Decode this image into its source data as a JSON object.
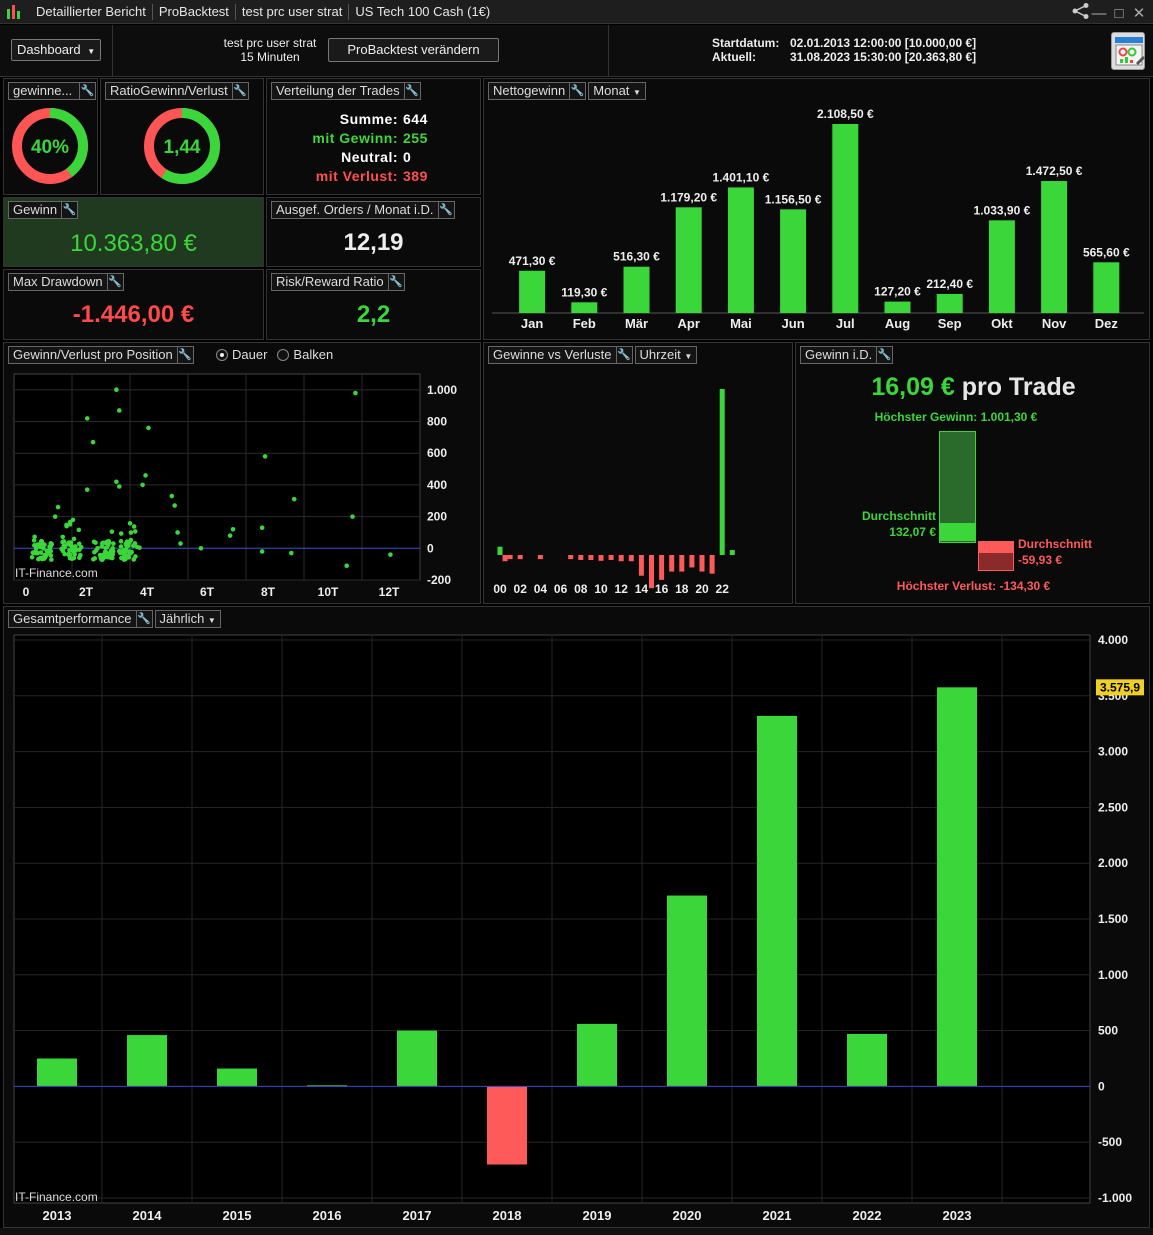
{
  "titlebar": {
    "segments": [
      "Detaillierter Bericht",
      "ProBacktest",
      "test prc user strat",
      "US Tech 100 Cash (1€)"
    ],
    "controls": [
      "share-icon",
      "minimize-icon",
      "maximize-icon",
      "close-icon"
    ]
  },
  "header": {
    "dashboard_label": "Dashboard",
    "strategy_name": "test prc user strat",
    "timeframe": "15 Minuten",
    "modify_button": "ProBacktest verändern",
    "start_label": "Startdatum:",
    "start_value": "02.01.2013 12:00:00 [10.000,00 €]",
    "current_label": "Aktuell:",
    "current_value": "31.08.2023 15:30:00 [20.363,80 €]"
  },
  "panels": {
    "winrate": {
      "title": "gewinne...",
      "value": "40%",
      "fraction": 0.4
    },
    "ratio": {
      "title": "RatioGewinn/Verlust",
      "value": "1,44",
      "fraction": 0.59
    },
    "distribution": {
      "title": "Verteilung der Trades",
      "rows": [
        {
          "label": "Summe:",
          "value": "644",
          "color": "#ffffff"
        },
        {
          "label": "mit Gewinn:",
          "value": "255",
          "color": "#3fd63f"
        },
        {
          "label": "Neutral:",
          "value": "0",
          "color": "#ffffff"
        },
        {
          "label": "mit Verlust:",
          "value": "389",
          "color": "#ff5050"
        }
      ]
    },
    "gain": {
      "title": "Gewinn",
      "value": "10.363,80 €"
    },
    "orders": {
      "title": "Ausgef. Orders / Monat i.D.",
      "value": "12,19"
    },
    "drawdown": {
      "title": "Max Drawdown",
      "value": "-1.446,00 €"
    },
    "riskreward": {
      "title": "Risk/Reward Ratio",
      "value": "2,2"
    },
    "monthly": {
      "title": "Nettogewinn",
      "dropdown": "Monat"
    },
    "scatter": {
      "title": "Gewinn/Verlust pro Position",
      "option1": "Dauer",
      "option2": "Balken",
      "watermark": "IT-Finance.com"
    },
    "hours": {
      "title": "Gewinne vs Verluste",
      "dropdown": "Uhrzeit"
    },
    "avg": {
      "title": "Gewinn i.D.",
      "per_trade_value": "16,09 €",
      "per_trade_text": "pro Trade",
      "max_gain_label": "Höchster Gewinn: 1.001,30 €",
      "avg_gain_label": "Durchschnitt",
      "avg_gain_value": "132,07 €",
      "avg_loss_label": "Durchschnitt",
      "avg_loss_value": "-59,93 €",
      "max_loss_label": "Höchster Verlust: -134,30 €"
    },
    "yearly": {
      "title": "Gesamtperformance",
      "dropdown": "Jährlich",
      "watermark": "IT-Finance.com",
      "last_value_label": "3.575,9"
    }
  },
  "colors": {
    "green": "#3ad63a",
    "red": "#ff5a5a",
    "zero_line": "#3344cc"
  },
  "chart_data": [
    {
      "type": "bar",
      "categories": [
        "Jan",
        "Feb",
        "Mär",
        "Apr",
        "Mai",
        "Jun",
        "Jul",
        "Aug",
        "Sep",
        "Okt",
        "Nov",
        "Dez"
      ],
      "values": [
        471.3,
        119.3,
        516.3,
        1179.2,
        1401.1,
        1156.5,
        2108.5,
        127.2,
        212.4,
        1033.9,
        1472.5,
        565.6
      ],
      "labels": [
        "471,30 €",
        "119,30 €",
        "516,30 €",
        "1.179,20 €",
        "1.401,10 €",
        "1.156,50 €",
        "2.108,50 €",
        "127,20 €",
        "212,40 €",
        "1.033,90 €",
        "1.472,50 €",
        "565,60 €"
      ],
      "ylim": [
        0,
        2108.5
      ]
    },
    {
      "type": "scatter",
      "xtick_labels": [
        "0",
        "2T",
        "4T",
        "6T",
        "8T",
        "10T",
        "12T"
      ],
      "xlim": [
        0,
        13
      ],
      "ytick_labels": [
        "1.000",
        "800",
        "600",
        "400",
        "200",
        "0",
        "-200"
      ],
      "yticks": [
        1000,
        800,
        600,
        400,
        200,
        0,
        -200
      ],
      "ylim": [
        -200,
        1100
      ],
      "points": [
        [
          3.1,
          1001
        ],
        [
          3.2,
          870
        ],
        [
          2.1,
          820
        ],
        [
          4.2,
          760
        ],
        [
          2.3,
          670
        ],
        [
          8.2,
          580
        ],
        [
          11.3,
          980
        ],
        [
          3.1,
          420
        ],
        [
          3.2,
          390
        ],
        [
          2.1,
          370
        ],
        [
          4.1,
          460
        ],
        [
          4.0,
          400
        ],
        [
          1.1,
          260
        ],
        [
          1.0,
          200
        ],
        [
          5.0,
          330
        ],
        [
          5.1,
          270
        ],
        [
          9.2,
          310
        ],
        [
          11.2,
          200
        ],
        [
          7.1,
          120
        ],
        [
          7.0,
          80
        ],
        [
          8.1,
          130
        ],
        [
          6.0,
          0
        ],
        [
          8.1,
          -20
        ],
        [
          9.1,
          -30
        ],
        [
          11.0,
          -110
        ],
        [
          12.5,
          -40
        ],
        [
          5.3,
          30
        ],
        [
          5.2,
          100
        ]
      ]
    },
    {
      "type": "bar",
      "categories": [
        "00",
        "02",
        "04",
        "06",
        "08",
        "10",
        "12",
        "14",
        "16",
        "18",
        "20",
        "22"
      ],
      "note": "hourly profit vs loss",
      "hour_values": [
        [
          0,
          50
        ],
        [
          0.5,
          -15
        ],
        [
          1,
          -10
        ],
        [
          2,
          -10
        ],
        [
          4,
          -10
        ],
        [
          7,
          -10
        ],
        [
          8,
          -12
        ],
        [
          9,
          -12
        ],
        [
          10,
          -14
        ],
        [
          11,
          -12
        ],
        [
          12,
          -15
        ],
        [
          13,
          -15
        ],
        [
          14,
          -50
        ],
        [
          15,
          -80
        ],
        [
          16,
          -60
        ],
        [
          17,
          -40
        ],
        [
          18,
          -40
        ],
        [
          19,
          -30
        ],
        [
          20,
          -40
        ],
        [
          21,
          -45
        ],
        [
          22,
          1001
        ],
        [
          23,
          30
        ]
      ],
      "ylim": [
        -150,
        1001
      ]
    },
    {
      "type": "bar",
      "categories": [
        "2013",
        "2014",
        "2015",
        "2016",
        "2017",
        "2018",
        "2019",
        "2020",
        "2021",
        "2022",
        "2023"
      ],
      "values": [
        250,
        460,
        160,
        10,
        500,
        -700,
        560,
        1710,
        3320,
        470,
        3575.9
      ],
      "ytick_labels": [
        "4.000",
        "3.500",
        "3.000",
        "2.500",
        "2.000",
        "1.500",
        "1.000",
        "500",
        "0",
        "-500",
        "-1.000"
      ],
      "yticks": [
        4000,
        3500,
        3000,
        2500,
        2000,
        1500,
        1000,
        500,
        0,
        -500,
        -1000
      ],
      "ylim": [
        -1000,
        4000
      ]
    }
  ]
}
